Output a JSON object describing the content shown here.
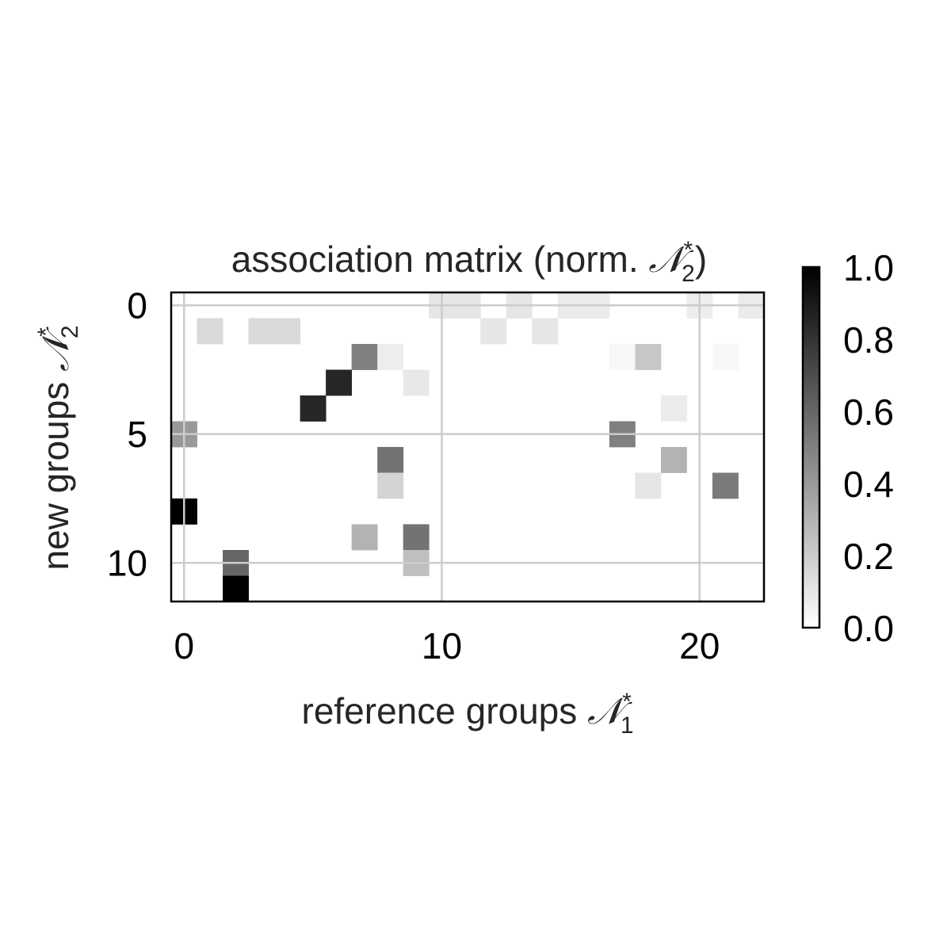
{
  "chart_data": {
    "type": "heatmap",
    "title": "association matrix (norm. 𝒩*₂)",
    "title_main": "association matrix (norm. ",
    "title_math": "𝒩",
    "title_sup": "*",
    "title_sub": "2",
    "title_close": ")",
    "xlabel_main": "reference groups ",
    "xlabel_math": "𝒩",
    "xlabel_sup": "*",
    "xlabel_sub": "1",
    "ylabel_main": "new groups ",
    "ylabel_math": "𝒩",
    "ylabel_sup": "*",
    "ylabel_sub": "2",
    "xlabel": "reference groups 𝒩*₁",
    "ylabel": "new groups 𝒩*₂",
    "n_cols": 23,
    "n_rows": 12,
    "x_ticks": [
      0,
      10,
      20
    ],
    "y_ticks": [
      0,
      5,
      10
    ],
    "x_tick_labels": [
      "0",
      "10",
      "20"
    ],
    "y_tick_labels": [
      "0",
      "5",
      "10"
    ],
    "grid": true,
    "colormap": "greys",
    "vmin": 0.0,
    "vmax": 1.0,
    "colorbar_ticks": [
      0.0,
      0.2,
      0.4,
      0.6,
      0.8,
      1.0
    ],
    "colorbar_tick_labels": [
      "0.0",
      "0.2",
      "0.4",
      "0.6",
      "0.8",
      "1.0"
    ],
    "cells": [
      {
        "row": 0,
        "col": 10,
        "value": 0.1
      },
      {
        "row": 0,
        "col": 11,
        "value": 0.1
      },
      {
        "row": 0,
        "col": 13,
        "value": 0.1
      },
      {
        "row": 0,
        "col": 15,
        "value": 0.08
      },
      {
        "row": 0,
        "col": 16,
        "value": 0.08
      },
      {
        "row": 0,
        "col": 20,
        "value": 0.07
      },
      {
        "row": 0,
        "col": 22,
        "value": 0.08
      },
      {
        "row": 1,
        "col": 1,
        "value": 0.15
      },
      {
        "row": 1,
        "col": 3,
        "value": 0.15
      },
      {
        "row": 1,
        "col": 4,
        "value": 0.15
      },
      {
        "row": 1,
        "col": 12,
        "value": 0.1
      },
      {
        "row": 1,
        "col": 14,
        "value": 0.1
      },
      {
        "row": 2,
        "col": 7,
        "value": 0.5
      },
      {
        "row": 2,
        "col": 8,
        "value": 0.07
      },
      {
        "row": 2,
        "col": 17,
        "value": 0.03
      },
      {
        "row": 2,
        "col": 18,
        "value": 0.22
      },
      {
        "row": 2,
        "col": 21,
        "value": 0.03
      },
      {
        "row": 3,
        "col": 6,
        "value": 0.85
      },
      {
        "row": 3,
        "col": 9,
        "value": 0.09
      },
      {
        "row": 4,
        "col": 5,
        "value": 0.85
      },
      {
        "row": 4,
        "col": 19,
        "value": 0.08
      },
      {
        "row": 5,
        "col": 0,
        "value": 0.4
      },
      {
        "row": 5,
        "col": 17,
        "value": 0.5
      },
      {
        "row": 6,
        "col": 8,
        "value": 0.55
      },
      {
        "row": 6,
        "col": 19,
        "value": 0.3
      },
      {
        "row": 7,
        "col": 8,
        "value": 0.17
      },
      {
        "row": 7,
        "col": 18,
        "value": 0.1
      },
      {
        "row": 7,
        "col": 21,
        "value": 0.52
      },
      {
        "row": 8,
        "col": 0,
        "value": 1.0
      },
      {
        "row": 9,
        "col": 7,
        "value": 0.3
      },
      {
        "row": 9,
        "col": 9,
        "value": 0.55
      },
      {
        "row": 10,
        "col": 2,
        "value": 0.6
      },
      {
        "row": 10,
        "col": 9,
        "value": 0.25
      },
      {
        "row": 11,
        "col": 2,
        "value": 1.0
      }
    ]
  }
}
